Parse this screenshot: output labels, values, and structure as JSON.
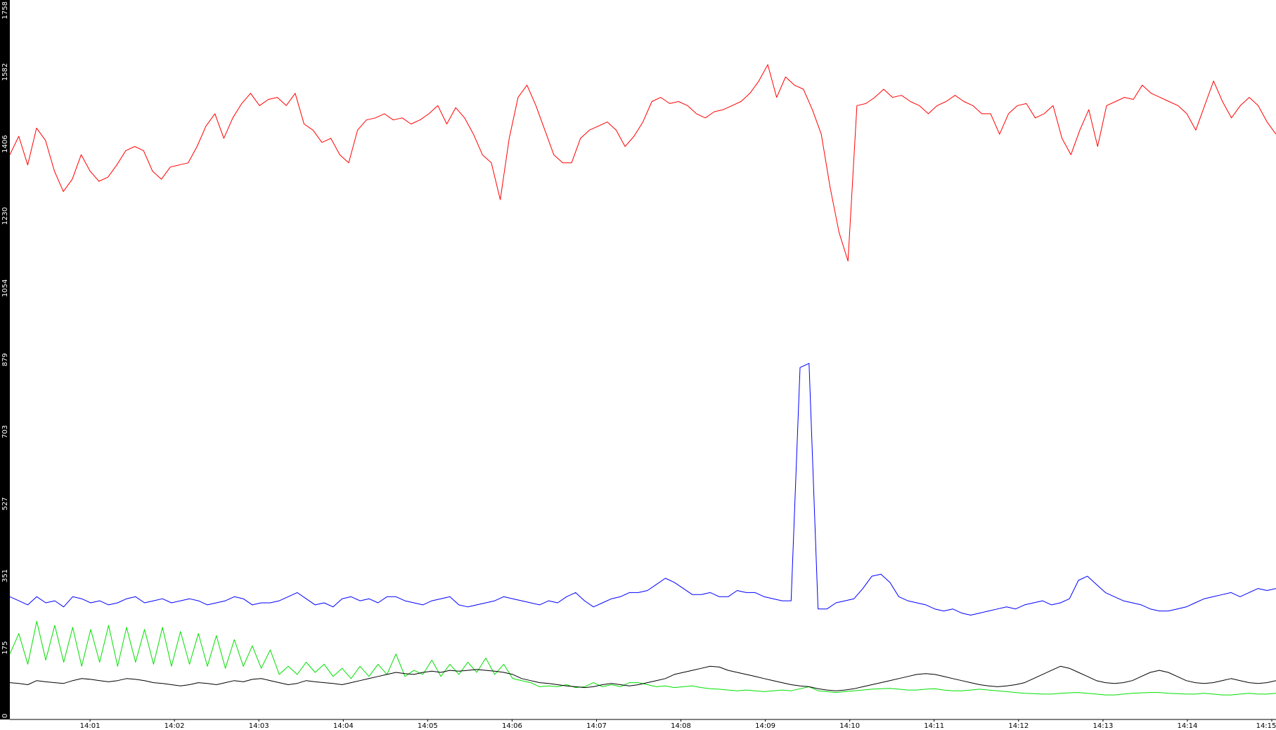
{
  "chart_data": {
    "type": "line",
    "title": "",
    "xlabel": "",
    "ylabel": "",
    "grid": false,
    "legend": "none",
    "ylim": [
      0,
      1758
    ],
    "y_ticks": [
      "0",
      "175",
      "351",
      "527",
      "703",
      "879",
      "1054",
      "1230",
      "1406",
      "1582",
      "1758"
    ],
    "x_ticks": [
      "14:01",
      "14:02",
      "14:03",
      "14:04",
      "14:05",
      "14:06",
      "14:07",
      "14:08",
      "14:09",
      "14:10",
      "14:11",
      "14:12",
      "14:13",
      "14:14",
      "14:15"
    ],
    "x_minute_range": [
      60.05,
      75.05
    ],
    "colors": {
      "axis_band": "#000000",
      "tick_text": "#000000",
      "axis_text": "#ffffff"
    },
    "series": [
      {
        "color": "#ff0000",
        "values": [
          1380,
          1425,
          1355,
          1445,
          1415,
          1340,
          1290,
          1320,
          1380,
          1340,
          1315,
          1325,
          1355,
          1390,
          1400,
          1390,
          1340,
          1320,
          1350,
          1355,
          1360,
          1400,
          1450,
          1480,
          1420,
          1470,
          1505,
          1530,
          1500,
          1515,
          1520,
          1500,
          1530,
          1455,
          1440,
          1410,
          1420,
          1380,
          1360,
          1440,
          1465,
          1470,
          1480,
          1465,
          1470,
          1455,
          1465,
          1480,
          1500,
          1455,
          1495,
          1470,
          1430,
          1380,
          1360,
          1270,
          1420,
          1520,
          1550,
          1500,
          1440,
          1380,
          1360,
          1360,
          1420,
          1440,
          1450,
          1460,
          1440,
          1400,
          1425,
          1460,
          1510,
          1520,
          1505,
          1510,
          1500,
          1480,
          1470,
          1485,
          1490,
          1500,
          1510,
          1530,
          1560,
          1600,
          1520,
          1570,
          1550,
          1540,
          1490,
          1430,
          1300,
          1190,
          1120,
          1500,
          1505,
          1520,
          1540,
          1520,
          1525,
          1510,
          1500,
          1480,
          1500,
          1510,
          1525,
          1510,
          1500,
          1480,
          1480,
          1430,
          1480,
          1500,
          1505,
          1470,
          1480,
          1500,
          1420,
          1380,
          1440,
          1490,
          1400,
          1500,
          1510,
          1520,
          1515,
          1550,
          1530,
          1520,
          1510,
          1500,
          1480,
          1440,
          1500,
          1560,
          1510,
          1470,
          1500,
          1520,
          1500,
          1460,
          1430
        ]
      },
      {
        "color": "#0000ff",
        "values": [
          300,
          290,
          280,
          300,
          285,
          290,
          275,
          300,
          295,
          285,
          290,
          280,
          285,
          295,
          300,
          285,
          290,
          295,
          285,
          290,
          295,
          290,
          280,
          285,
          290,
          300,
          295,
          280,
          285,
          285,
          290,
          300,
          310,
          295,
          280,
          285,
          275,
          295,
          300,
          290,
          295,
          285,
          300,
          300,
          290,
          285,
          280,
          290,
          295,
          300,
          280,
          275,
          280,
          285,
          290,
          300,
          295,
          290,
          285,
          280,
          290,
          285,
          300,
          310,
          290,
          275,
          285,
          295,
          300,
          310,
          310,
          315,
          330,
          345,
          335,
          320,
          305,
          305,
          310,
          300,
          300,
          315,
          310,
          310,
          300,
          295,
          290,
          290,
          860,
          870,
          270,
          270,
          285,
          290,
          295,
          320,
          350,
          355,
          335,
          300,
          290,
          285,
          280,
          270,
          265,
          270,
          260,
          255,
          260,
          265,
          270,
          275,
          270,
          280,
          285,
          290,
          280,
          285,
          295,
          340,
          350,
          330,
          310,
          300,
          290,
          285,
          280,
          270,
          265,
          265,
          270,
          275,
          285,
          295,
          300,
          305,
          310,
          300,
          310,
          320,
          315,
          320
        ]
      },
      {
        "color": "#00e000",
        "values": [
          160,
          210,
          135,
          240,
          145,
          230,
          140,
          225,
          130,
          220,
          140,
          230,
          130,
          225,
          140,
          220,
          135,
          225,
          130,
          215,
          135,
          210,
          130,
          205,
          125,
          195,
          130,
          180,
          125,
          170,
          110,
          130,
          110,
          140,
          115,
          135,
          105,
          125,
          100,
          130,
          105,
          135,
          110,
          160,
          105,
          120,
          110,
          145,
          105,
          135,
          110,
          140,
          115,
          150,
          110,
          135,
          100,
          95,
          90,
          80,
          82,
          80,
          85,
          78,
          80,
          90,
          80,
          85,
          80,
          90,
          90,
          85,
          80,
          82,
          78,
          80,
          82,
          78,
          75,
          74,
          72,
          70,
          72,
          70,
          68,
          70,
          72,
          70,
          75,
          80,
          70,
          68,
          66,
          68,
          70,
          72,
          74,
          75,
          76,
          74,
          72,
          72,
          74,
          75,
          72,
          70,
          70,
          72,
          74,
          72,
          70,
          68,
          66,
          64,
          63,
          62,
          62,
          64,
          65,
          66,
          64,
          62,
          60,
          60,
          62,
          64,
          65,
          66,
          66,
          64,
          63,
          62,
          62,
          64,
          62,
          60,
          60,
          62,
          64,
          62,
          62,
          64
        ]
      },
      {
        "color": "#000000",
        "values": [
          90,
          88,
          85,
          95,
          92,
          90,
          88,
          95,
          100,
          98,
          95,
          92,
          95,
          100,
          98,
          95,
          90,
          88,
          85,
          82,
          85,
          90,
          88,
          85,
          90,
          95,
          92,
          98,
          100,
          95,
          90,
          85,
          88,
          95,
          92,
          90,
          88,
          85,
          90,
          95,
          100,
          105,
          110,
          115,
          112,
          110,
          115,
          118,
          115,
          120,
          118,
          120,
          122,
          120,
          118,
          115,
          110,
          100,
          95,
          90,
          88,
          85,
          82,
          80,
          78,
          80,
          85,
          88,
          85,
          82,
          85,
          90,
          95,
          100,
          110,
          115,
          120,
          125,
          130,
          128,
          120,
          115,
          110,
          105,
          100,
          95,
          90,
          85,
          82,
          80,
          75,
          72,
          70,
          72,
          75,
          80,
          85,
          90,
          95,
          100,
          105,
          110,
          112,
          110,
          105,
          100,
          95,
          90,
          85,
          82,
          80,
          82,
          85,
          90,
          100,
          110,
          120,
          130,
          125,
          115,
          105,
          95,
          90,
          88,
          90,
          95,
          105,
          115,
          120,
          115,
          105,
          95,
          90,
          88,
          90,
          95,
          100,
          95,
          90,
          88,
          90,
          95
        ]
      }
    ]
  }
}
